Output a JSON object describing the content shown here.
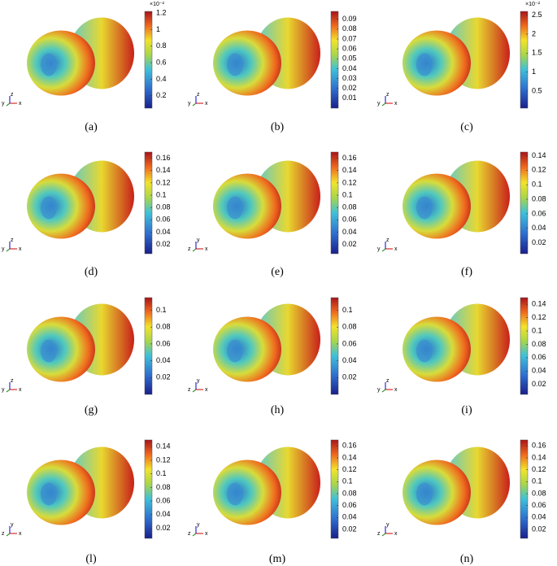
{
  "panels": [
    {
      "label": "(a)",
      "exponent": "×10⁻²",
      "range": [
        0.05,
        1.22
      ],
      "ticks": [
        0.2,
        0.4,
        0.6,
        0.8,
        1,
        1.2
      ],
      "triad": [
        "y",
        "z",
        "x"
      ]
    },
    {
      "label": "(b)",
      "range": [
        0,
        0.098
      ],
      "ticks": [
        0.01,
        0.02,
        0.03,
        0.04,
        0.05,
        0.06,
        0.07,
        0.08,
        0.09
      ],
      "triad": [
        "y",
        "z",
        "x"
      ]
    },
    {
      "label": "(c)",
      "exponent": "×10⁻²",
      "range": [
        0.05,
        2.6
      ],
      "ticks": [
        0.5,
        1,
        1.5,
        2,
        2.5
      ],
      "triad": [
        "y",
        "z",
        "x"
      ]
    },
    {
      "label": "(d)",
      "range": [
        0.005,
        0.17
      ],
      "ticks": [
        0.02,
        0.04,
        0.06,
        0.08,
        0.1,
        0.12,
        0.14,
        0.16
      ],
      "triad": [
        "y",
        "z",
        "x"
      ]
    },
    {
      "label": "(e)",
      "range": [
        0.005,
        0.17
      ],
      "ticks": [
        0.02,
        0.04,
        0.06,
        0.08,
        0.1,
        0.12,
        0.14,
        0.16
      ],
      "triad": [
        "z",
        "y",
        "x"
      ]
    },
    {
      "label": "(f)",
      "range": [
        0.005,
        0.145
      ],
      "ticks": [
        0.02,
        0.04,
        0.06,
        0.08,
        0.1,
        0.12,
        0.14
      ],
      "triad": [
        "y",
        "z",
        "x"
      ]
    },
    {
      "label": "(g)",
      "range": [
        0,
        0.115
      ],
      "ticks": [
        0.02,
        0.04,
        0.06,
        0.08,
        0.1
      ],
      "triad": [
        "y",
        "z",
        "x"
      ]
    },
    {
      "label": "(h)",
      "range": [
        0,
        0.115
      ],
      "ticks": [
        0.02,
        0.04,
        0.06,
        0.08,
        0.1
      ],
      "triad": [
        "z",
        "y",
        "x"
      ]
    },
    {
      "label": "(i)",
      "range": [
        0.005,
        0.15
      ],
      "ticks": [
        0.02,
        0.04,
        0.06,
        0.08,
        0.1,
        0.12,
        0.14
      ],
      "triad": [
        "y",
        "z",
        "x"
      ]
    },
    {
      "label": "(l)",
      "range": [
        0.005,
        0.15
      ],
      "ticks": [
        0.02,
        0.04,
        0.06,
        0.08,
        0.1,
        0.12,
        0.14
      ],
      "triad": [
        "z",
        "y",
        "x"
      ]
    },
    {
      "label": "(m)",
      "range": [
        0.005,
        0.17
      ],
      "ticks": [
        0.02,
        0.04,
        0.06,
        0.08,
        0.1,
        0.12,
        0.14,
        0.16
      ],
      "triad": [
        "z",
        "y",
        "x"
      ]
    },
    {
      "label": "(n)",
      "range": [
        0.005,
        0.17
      ],
      "ticks": [
        0.02,
        0.04,
        0.06,
        0.08,
        0.1,
        0.12,
        0.14,
        0.16
      ],
      "triad": [
        "z",
        "y",
        "x"
      ]
    }
  ]
}
